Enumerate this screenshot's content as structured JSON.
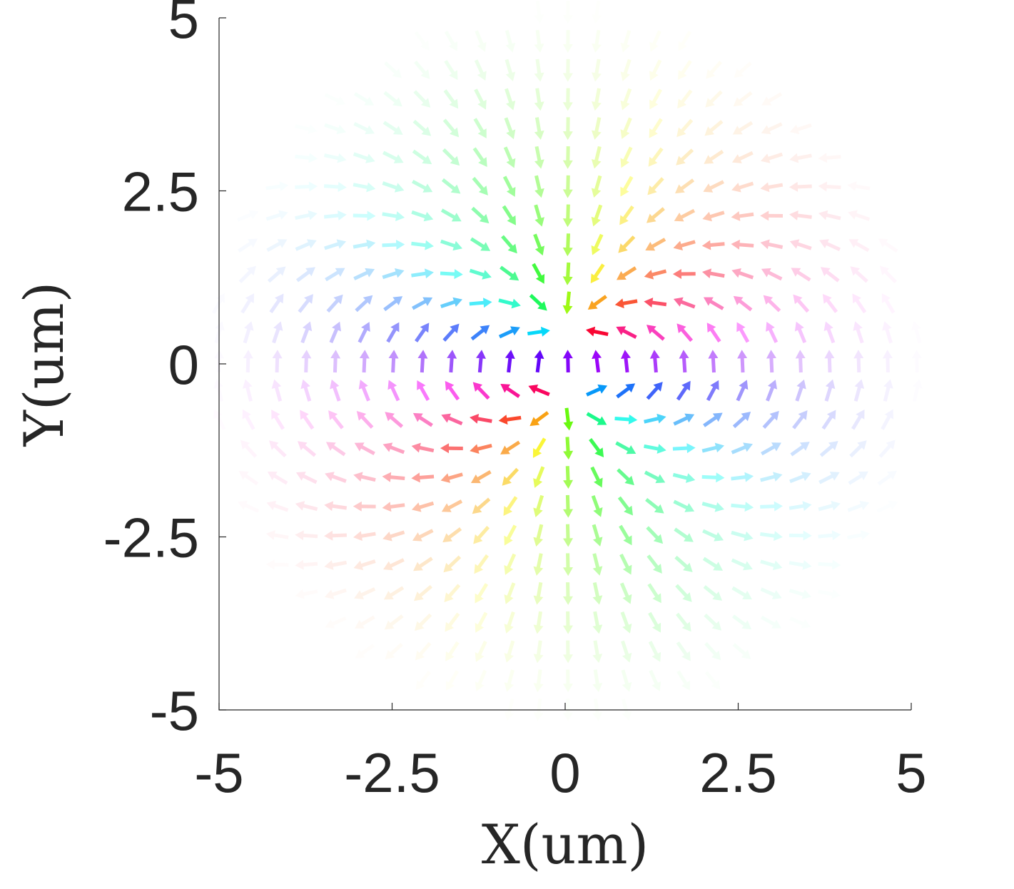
{
  "chart_data": {
    "type": "quiver",
    "title": "",
    "xlabel": "X(um)",
    "ylabel": "Y(um)",
    "xlim": [
      -5,
      5
    ],
    "ylim": [
      -5,
      5
    ],
    "x_ticks": [
      -5,
      -2.5,
      0,
      2.5,
      5
    ],
    "y_ticks": [
      -5,
      -2.5,
      0,
      2.5,
      5
    ],
    "x_tick_labels": [
      "-5",
      "-2.5",
      "0",
      "2.5",
      "5"
    ],
    "y_tick_labels": [
      "-5",
      "-2.5",
      "0",
      "2.5",
      "5"
    ],
    "grid": false,
    "field": {
      "grid_x_range": [
        -5,
        5
      ],
      "grid_y_range": [
        -5,
        5
      ],
      "grid_step": 0.42,
      "sources": [
        {
          "x": 0,
          "y": 0.45,
          "sign": -1
        },
        {
          "x": 0,
          "y": -0.45,
          "sign": 1
        }
      ],
      "color_encoding": "arrow direction mapped to hue",
      "opacity_encoding": "magnitude (fades toward edges)"
    }
  }
}
